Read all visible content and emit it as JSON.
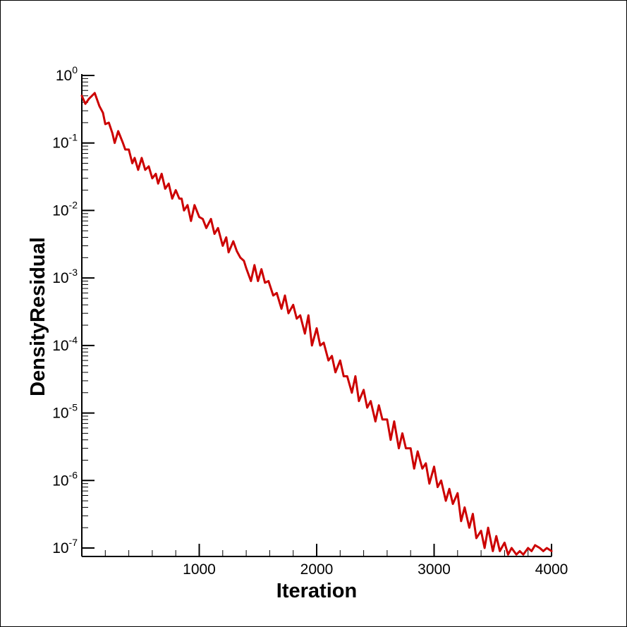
{
  "chart_data": {
    "type": "line",
    "title": "",
    "xlabel": "Iteration",
    "ylabel": "DensityResidual",
    "xlim": [
      0,
      4000
    ],
    "ylim": [
      1e-07,
      1
    ],
    "yscale": "log",
    "grid": false,
    "legend": "none",
    "x_ticks": [
      1000,
      2000,
      3000,
      4000
    ],
    "x_tick_labels": [
      "1000",
      "2000",
      "3000",
      "4000"
    ],
    "y_ticks": [
      {
        "value": 1,
        "base": "10",
        "exp": "0"
      },
      {
        "value": 0.1,
        "base": "10",
        "exp": "-1"
      },
      {
        "value": 0.01,
        "base": "10",
        "exp": "-2"
      },
      {
        "value": 0.001,
        "base": "10",
        "exp": "-3"
      },
      {
        "value": 0.0001,
        "base": "10",
        "exp": "-4"
      },
      {
        "value": 1e-05,
        "base": "10",
        "exp": "-5"
      },
      {
        "value": 1e-06,
        "base": "10",
        "exp": "-6"
      },
      {
        "value": 1e-07,
        "base": "10",
        "exp": "-7"
      }
    ],
    "series": [
      {
        "color": "#cc0000",
        "x": [
          0,
          30,
          60,
          110,
          150,
          180,
          200,
          230,
          260,
          280,
          310,
          350,
          370,
          400,
          430,
          450,
          480,
          510,
          540,
          570,
          600,
          630,
          650,
          680,
          710,
          740,
          770,
          800,
          830,
          850,
          870,
          900,
          930,
          960,
          1000,
          1030,
          1060,
          1100,
          1130,
          1160,
          1200,
          1230,
          1250,
          1290,
          1320,
          1350,
          1380,
          1400,
          1440,
          1470,
          1500,
          1530,
          1560,
          1590,
          1630,
          1660,
          1700,
          1730,
          1760,
          1800,
          1830,
          1860,
          1900,
          1930,
          1960,
          2000,
          2030,
          2060,
          2100,
          2130,
          2160,
          2200,
          2230,
          2260,
          2300,
          2330,
          2360,
          2400,
          2430,
          2460,
          2500,
          2530,
          2560,
          2600,
          2630,
          2660,
          2700,
          2730,
          2760,
          2800,
          2830,
          2860,
          2900,
          2930,
          2960,
          3000,
          3030,
          3060,
          3100,
          3130,
          3160,
          3200,
          3230,
          3260,
          3300,
          3330,
          3360,
          3400,
          3430,
          3460,
          3500,
          3530,
          3560,
          3600,
          3630,
          3660,
          3700,
          3730,
          3760,
          3800,
          3830,
          3860,
          3900,
          3930,
          3960,
          4000
        ],
        "y": [
          0.5,
          0.38,
          0.45,
          0.55,
          0.35,
          0.28,
          0.19,
          0.2,
          0.14,
          0.1,
          0.15,
          0.1,
          0.08,
          0.08,
          0.05,
          0.06,
          0.04,
          0.06,
          0.04,
          0.045,
          0.03,
          0.035,
          0.025,
          0.035,
          0.021,
          0.025,
          0.015,
          0.02,
          0.015,
          0.015,
          0.01,
          0.012,
          0.007,
          0.012,
          0.008,
          0.0075,
          0.0055,
          0.0075,
          0.0045,
          0.0055,
          0.003,
          0.004,
          0.0024,
          0.0035,
          0.0025,
          0.002,
          0.0018,
          0.0014,
          0.0009,
          0.00155,
          0.0009,
          0.00135,
          0.00085,
          0.0009,
          0.00055,
          0.0006,
          0.00035,
          0.00055,
          0.0003,
          0.0004,
          0.00025,
          0.00028,
          0.00015,
          0.00028,
          0.0001,
          0.00018,
          0.0001,
          0.00011,
          6e-05,
          7e-05,
          4e-05,
          6e-05,
          3.5e-05,
          3.5e-05,
          2e-05,
          3.5e-05,
          1.5e-05,
          2.2e-05,
          1.2e-05,
          1.5e-05,
          7.5e-06,
          1.3e-05,
          8e-06,
          8e-06,
          4e-06,
          7.5e-06,
          3e-06,
          5e-06,
          3e-06,
          3e-06,
          1.5e-06,
          2.7e-06,
          1.5e-06,
          1.8e-06,
          9e-07,
          1.6e-06,
          8e-07,
          1e-06,
          5e-07,
          7.5e-07,
          4.5e-07,
          6.5e-07,
          2.5e-07,
          4e-07,
          2e-07,
          3.2e-07,
          1.4e-07,
          1.8e-07,
          1e-07,
          2e-07,
          9e-08,
          1.5e-07,
          9e-08,
          1.2e-07,
          8e-08,
          1e-07,
          8e-08,
          9e-08,
          8e-08,
          1e-07,
          9e-08,
          1.1e-07,
          1e-07,
          9e-08,
          1e-07,
          9e-08
        ]
      }
    ]
  }
}
